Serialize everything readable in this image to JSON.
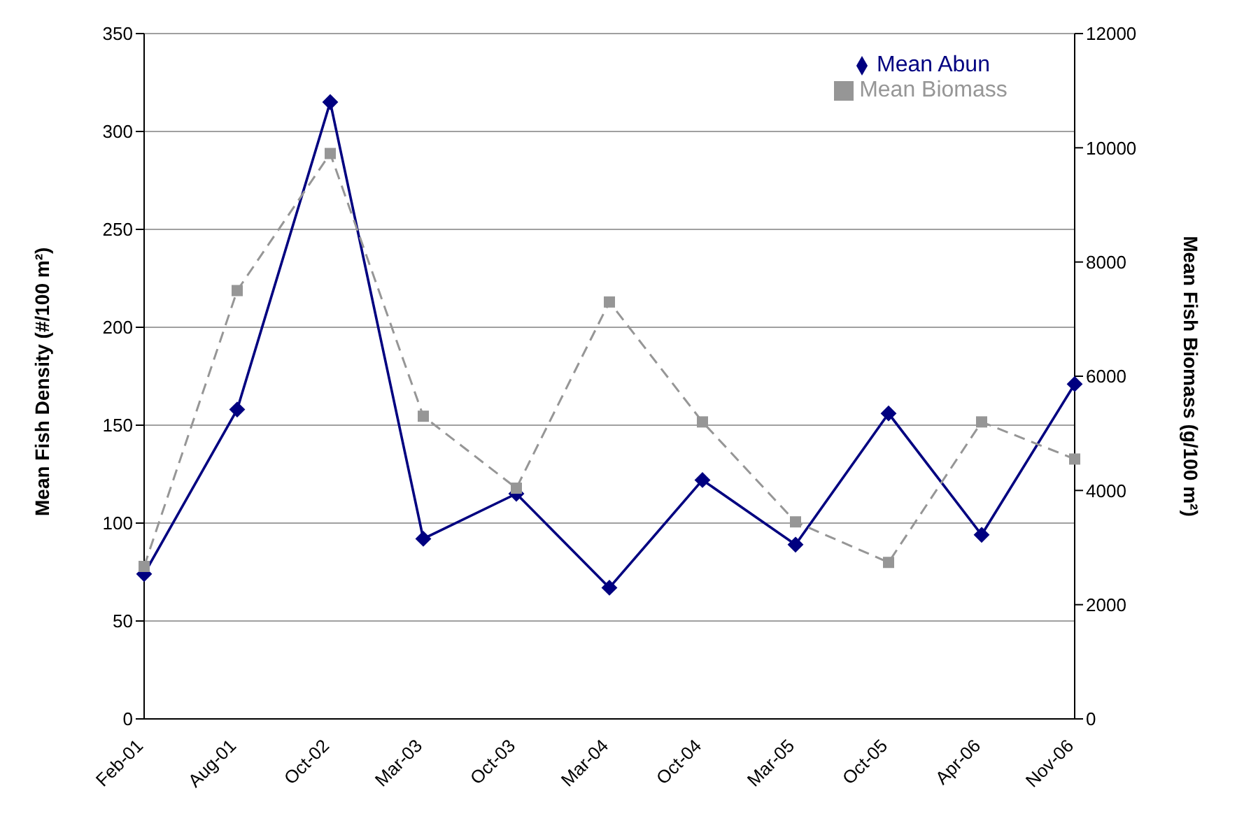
{
  "chart_data": {
    "type": "line",
    "ylabel": "Mean Fish Density (#/100 m²)",
    "y2label": "Mean Fish Biomass (g/100 m²)",
    "categories": [
      "Feb-01",
      "Aug-01",
      "Oct-02",
      "Mar-03",
      "Oct-03",
      "Mar-04",
      "Oct-04",
      "Mar-05",
      "Oct-05",
      "Apr-06",
      "Nov-06"
    ],
    "series": [
      {
        "name": "Mean Abun",
        "color": "#000080",
        "marker": "diamond",
        "line_style": "solid",
        "values": [
          74,
          158,
          315,
          92,
          115,
          67,
          122,
          89,
          156,
          94,
          171
        ]
      },
      {
        "name": "Mean Biomass",
        "color": "#969696",
        "marker": "square",
        "line_style": "dashed",
        "axis": "y2",
        "values": [
          2670,
          7500,
          9900,
          5300,
          4040,
          7300,
          5200,
          3450,
          2740,
          5200,
          4550
        ]
      }
    ],
    "ylim": [
      0,
      350
    ],
    "yticks": [
      0,
      50,
      100,
      150,
      200,
      250,
      300,
      350
    ],
    "y2lim": [
      0,
      12000
    ],
    "y2ticks": [
      0,
      2000,
      4000,
      6000,
      8000,
      10000,
      12000
    ],
    "grid": "y",
    "legend": "top right"
  }
}
